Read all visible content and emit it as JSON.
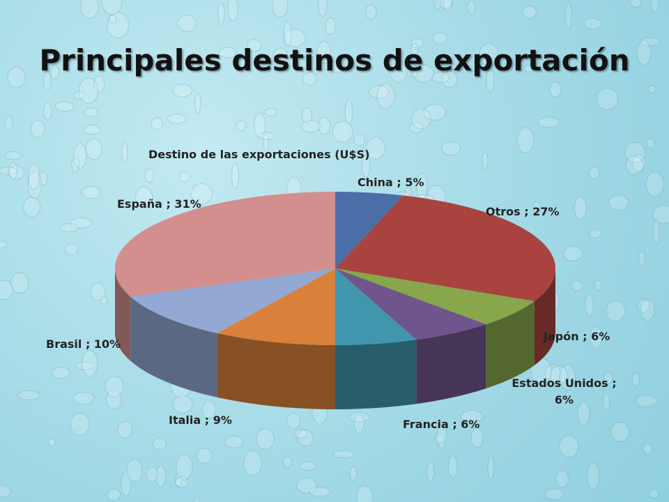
{
  "chart_data": {
    "type": "pie",
    "title": "Principales destinos de exportación",
    "subtitle": "Destino de las exportaciones (U$S)",
    "values": [
      5,
      27,
      6,
      6,
      6,
      9,
      10,
      31
    ],
    "value_labels": [
      "China ; 5%",
      "Otros ; 27%",
      "Japón ; 6%",
      "Estados Unidos ; 6%",
      "Francia ; 6%",
      "Italia ; 9%",
      "Brasil ; 10%",
      "España ; 31%"
    ],
    "colors": [
      "#4a6fa8",
      "#a8433f",
      "#88a64a",
      "#70558c",
      "#4196ad",
      "#d9813b",
      "#93a8d3",
      "#d28f8d"
    ]
  }
}
